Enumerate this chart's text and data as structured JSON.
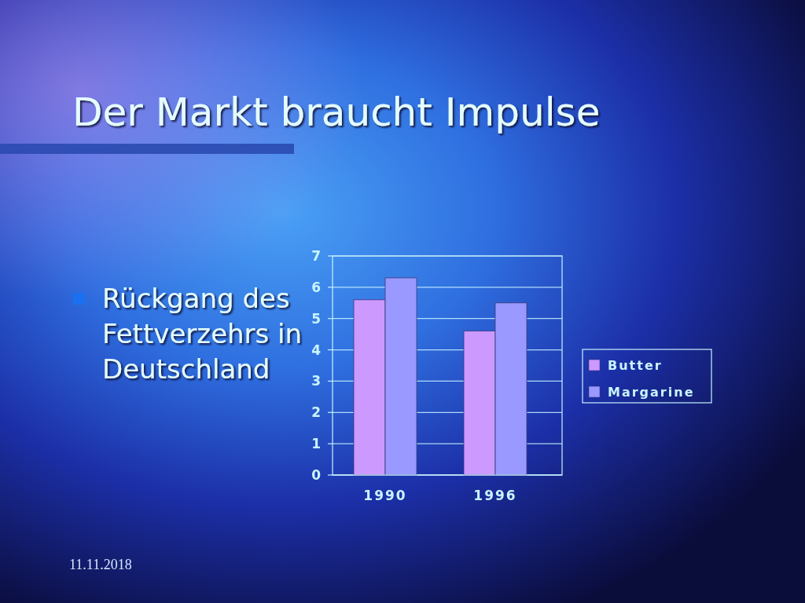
{
  "chart_data": {
    "type": "bar",
    "title": "Der Markt braucht Impulse",
    "categories": [
      "1990",
      "1996"
    ],
    "series": [
      {
        "name": "Butter",
        "color": "#cc99ff",
        "values": [
          5.6,
          4.6
        ]
      },
      {
        "name": "Margarine",
        "color": "#9999ff",
        "values": [
          6.3,
          5.5
        ]
      }
    ],
    "ylim": [
      0,
      7
    ],
    "yticks": [
      0,
      1,
      2,
      3,
      4,
      5,
      6,
      7
    ],
    "grid": "y",
    "legend": "right",
    "annotations": [
      "Rückgang des Fettverzehrs in Deutschland",
      "11.11.2018"
    ]
  }
}
